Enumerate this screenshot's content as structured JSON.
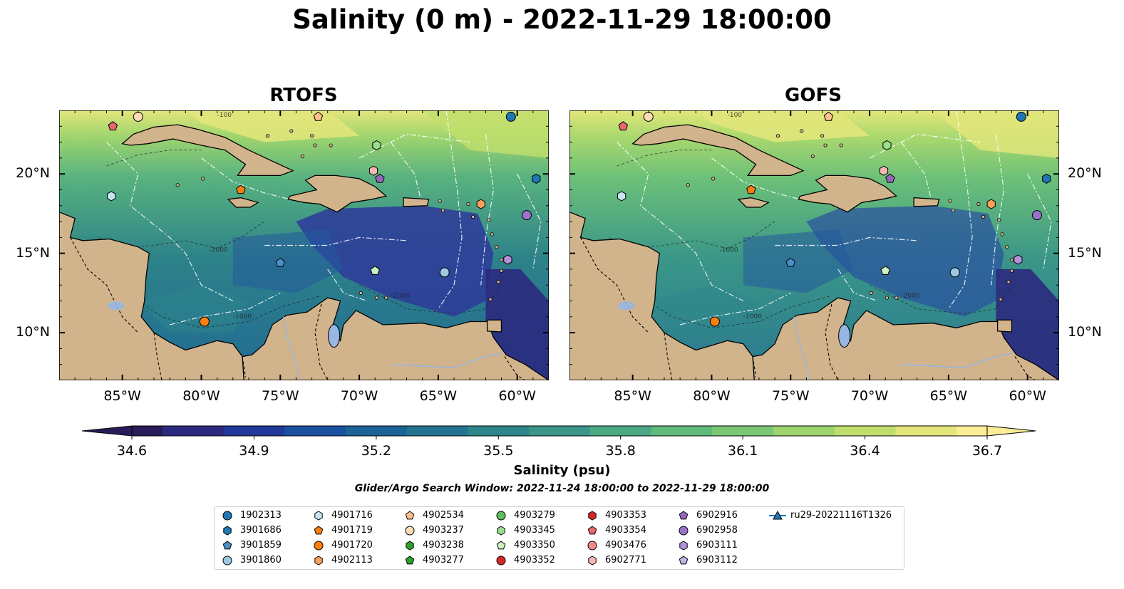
{
  "title": "Salinity (0 m) - 2022-11-29 18:00:00",
  "panels": [
    {
      "id": "rtofs",
      "title": "RTOFS",
      "variant": "rtofs"
    },
    {
      "id": "gofs",
      "title": "GOFS",
      "variant": "gofs"
    }
  ],
  "axes": {
    "lon_range": [
      -89,
      -58
    ],
    "lat_range": [
      7,
      24
    ],
    "lon_ticks": [
      "85°W",
      "80°W",
      "75°W",
      "70°W",
      "65°W",
      "60°W"
    ],
    "lat_ticks": [
      "20°N",
      "15°N",
      "10°N"
    ],
    "lon_tick_values": [
      -85,
      -80,
      -75,
      -70,
      -65,
      -60
    ],
    "lat_tick_values": [
      20,
      15,
      10
    ]
  },
  "contour_labels": [
    "-100",
    "-1000",
    "-2000"
  ],
  "colorbar": {
    "label": "Salinity (psu)",
    "min": 34.6,
    "max": 36.7,
    "ticks": [
      "34.6",
      "34.9",
      "35.2",
      "35.5",
      "35.8",
      "36.1",
      "36.4",
      "36.7"
    ],
    "extend": "both",
    "colormap": [
      "#291c58",
      "#2b2a7e",
      "#22399a",
      "#1a50a0",
      "#1b6397",
      "#237490",
      "#2e858c",
      "#3a9688",
      "#4aa883",
      "#5fba7c",
      "#7ac874",
      "#9dd46e",
      "#c0de6c",
      "#e3e67a",
      "#fbed96"
    ]
  },
  "colors": {
    "land": "#d2b48c",
    "ocean_deep_fresh": "#2b2a7e",
    "ocean_mid": "#2e858c",
    "ocean_salty": "#8ed070",
    "lakes": "#97b6e1",
    "eez_lines": "#ffffff"
  },
  "search_window": "Glider/Argo Search Window: 2022-11-24 18:00:00 to 2022-11-29 18:00:00",
  "legend": {
    "items": [
      {
        "label": "1902313",
        "marker": "circle",
        "color": "#1f77b4"
      },
      {
        "label": "3901686",
        "marker": "hexagon",
        "color": "#1f77b4"
      },
      {
        "label": "3901859",
        "marker": "pentagon",
        "color": "#4a90c8"
      },
      {
        "label": "3901860",
        "marker": "circle",
        "color": "#9ecae1"
      },
      {
        "label": "4901716",
        "marker": "hexagon",
        "color": "#c6e6f5"
      },
      {
        "label": "4901719",
        "marker": "pentagon",
        "color": "#ff7f0e"
      },
      {
        "label": "4901720",
        "marker": "circle",
        "color": "#ff7f0e"
      },
      {
        "label": "4902113",
        "marker": "hexagon",
        "color": "#ffa15a"
      },
      {
        "label": "4902534",
        "marker": "pentagon",
        "color": "#ffc28f"
      },
      {
        "label": "4903237",
        "marker": "circle",
        "color": "#ffdcb8"
      },
      {
        "label": "4903238",
        "marker": "hexagon",
        "color": "#2ca02c"
      },
      {
        "label": "4903277",
        "marker": "pentagon",
        "color": "#2ca02c"
      },
      {
        "label": "4903279",
        "marker": "circle",
        "color": "#5fbf5f"
      },
      {
        "label": "4903345",
        "marker": "hexagon",
        "color": "#98df8a"
      },
      {
        "label": "4903350",
        "marker": "pentagon",
        "color": "#c9f2bd"
      },
      {
        "label": "4903352",
        "marker": "circle",
        "color": "#d62728"
      },
      {
        "label": "4903353",
        "marker": "hexagon",
        "color": "#d62728"
      },
      {
        "label": "4903354",
        "marker": "pentagon",
        "color": "#e8676b"
      },
      {
        "label": "4903476",
        "marker": "circle",
        "color": "#f08b8b"
      },
      {
        "label": "6902771",
        "marker": "hexagon",
        "color": "#f7b6b5"
      },
      {
        "label": "6902916",
        "marker": "pentagon",
        "color": "#9467bd"
      },
      {
        "label": "6902958",
        "marker": "circle",
        "color": "#9b72cb"
      },
      {
        "label": "6903111",
        "marker": "hexagon",
        "color": "#b690e0"
      },
      {
        "label": "6903112",
        "marker": "pentagon",
        "color": "#c5b0e8"
      },
      {
        "label": "ru29-20221116T1326",
        "marker": "glider",
        "color": "#1f77b4"
      }
    ]
  },
  "floats_on_map": [
    {
      "id": "4903354",
      "marker": "pentagon",
      "color": "#e8676b",
      "lon": -85.6,
      "lat": 23.0
    },
    {
      "id": "4903237",
      "marker": "circle",
      "color": "#ffdcb8",
      "lon": -84.0,
      "lat": 23.6
    },
    {
      "id": "4902534",
      "marker": "pentagon",
      "color": "#ffc28f",
      "lon": -72.6,
      "lat": 23.6
    },
    {
      "id": "1902313",
      "marker": "circle",
      "color": "#1f77b4",
      "lon": -60.4,
      "lat": 23.6
    },
    {
      "id": "4903345",
      "marker": "hexagon",
      "color": "#98df8a",
      "lon": -68.9,
      "lat": 21.8
    },
    {
      "id": "6902771",
      "marker": "hexagon",
      "color": "#f7b6b5",
      "lon": -69.1,
      "lat": 20.2
    },
    {
      "id": "6902916",
      "marker": "pentagon",
      "color": "#9467bd",
      "lon": -68.7,
      "lat": 19.7
    },
    {
      "id": "3901686",
      "marker": "hexagon",
      "color": "#1f77b4",
      "lon": -58.8,
      "lat": 19.7
    },
    {
      "id": "4901716",
      "marker": "hexagon",
      "color": "#c6e6f5",
      "lon": -85.7,
      "lat": 18.6
    },
    {
      "id": "4901719",
      "marker": "pentagon",
      "color": "#ff7f0e",
      "lon": -77.5,
      "lat": 19.0
    },
    {
      "id": "4902113",
      "marker": "hexagon",
      "color": "#ffa15a",
      "lon": -62.3,
      "lat": 18.1
    },
    {
      "id": "6902958",
      "marker": "circle",
      "color": "#9b72cb",
      "lon": -59.4,
      "lat": 17.4
    },
    {
      "id": "6903111",
      "marker": "hexagon",
      "color": "#b690e0",
      "lon": -60.6,
      "lat": 14.6
    },
    {
      "id": "3901859",
      "marker": "pentagon",
      "color": "#4a90c8",
      "lon": -75.0,
      "lat": 14.4
    },
    {
      "id": "4903350",
      "marker": "pentagon",
      "color": "#c9f2bd",
      "lon": -69.0,
      "lat": 13.9
    },
    {
      "id": "3901860",
      "marker": "circle",
      "color": "#9ecae1",
      "lon": -64.6,
      "lat": 13.8
    },
    {
      "id": "4901720",
      "marker": "circle",
      "color": "#ff7f0e",
      "lon": -79.8,
      "lat": 10.7
    }
  ]
}
